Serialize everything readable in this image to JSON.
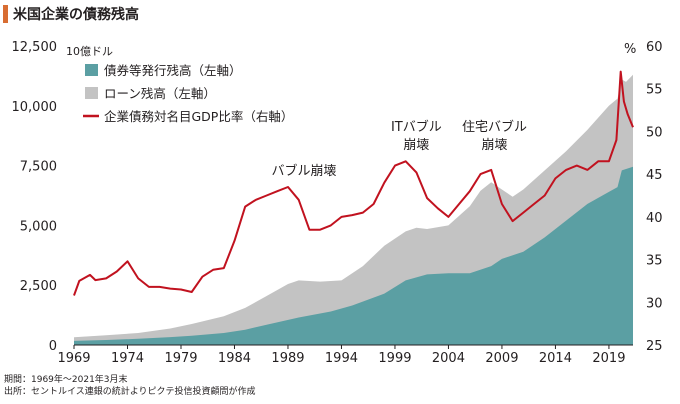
{
  "title": "米国企業の債務残高",
  "notes": {
    "period": "期間：1969年～2021年3月末",
    "source": "出所：セントルイス連銀の統計よりピクテ投信投資顧問が作成"
  },
  "colors": {
    "bonds": "#5b9fa3",
    "loans": "#c3c3c3",
    "ratio": "#c1121f",
    "title_accent": "#d86d32"
  },
  "chart_data": {
    "type": "area",
    "left_axis": {
      "unit_label": "10億ドル",
      "min": 0,
      "max": 12500,
      "ticks": [
        0,
        2500,
        5000,
        7500,
        10000,
        12500
      ],
      "tick_labels": [
        "0",
        "2,500",
        "5,000",
        "7,500",
        "10,000",
        "12,500"
      ]
    },
    "right_axis": {
      "unit_label": "%",
      "min": 25,
      "max": 60,
      "ticks": [
        25,
        30,
        35,
        40,
        45,
        50,
        55,
        60
      ],
      "tick_labels": [
        "25",
        "30",
        "35",
        "40",
        "45",
        "50",
        "55",
        "60"
      ]
    },
    "x_axis": {
      "min": 1969,
      "max": 2021.25,
      "ticks": [
        1969,
        1974,
        1979,
        1984,
        1989,
        1994,
        1999,
        2004,
        2009,
        2014,
        2019
      ],
      "tick_labels": [
        "1969",
        "1974",
        "1979",
        "1984",
        "1989",
        "1994",
        "1999",
        "2004",
        "2009",
        "2014",
        "2019"
      ]
    },
    "legend": [
      {
        "label": "債券等発行残高（左軸）",
        "kind": "area",
        "color": "#5b9fa3"
      },
      {
        "label": "ローン残高（左軸）",
        "kind": "area",
        "color": "#c3c3c3"
      },
      {
        "label": "企業債務対名目GDP比率（右軸）",
        "kind": "line",
        "color": "#c1121f"
      }
    ],
    "annotations": [
      {
        "lines": [
          "バブル崩壊"
        ],
        "x": 1990.5,
        "y": 45.5
      },
      {
        "lines": [
          "ITバブル",
          "崩壊"
        ],
        "x": 2001,
        "y": 48.5
      },
      {
        "lines": [
          "住宅バブル",
          "崩壊"
        ],
        "x": 2008.3,
        "y": 48.5
      }
    ],
    "series": [
      {
        "name": "債券等発行残高（左軸）",
        "axis": "left",
        "style": "stacked-area-bottom",
        "x": [
          1969,
          1972,
          1975,
          1978,
          1980,
          1983,
          1985,
          1987,
          1990,
          1993,
          1995,
          1998,
          2000,
          2002,
          2004,
          2006,
          2008,
          2009,
          2011,
          2013,
          2015,
          2017,
          2019,
          2019.8,
          2020.2,
          2021.25
        ],
        "y": [
          170,
          210,
          260,
          330,
          390,
          500,
          640,
          850,
          1150,
          1400,
          1650,
          2150,
          2700,
          2950,
          3000,
          3000,
          3300,
          3600,
          3900,
          4500,
          5200,
          5900,
          6400,
          6600,
          7300,
          7450
        ]
      },
      {
        "name": "ローン残高（左軸）",
        "axis": "left",
        "style": "stacked-area-top",
        "x": [
          1969,
          1972,
          1975,
          1978,
          1980,
          1983,
          1985,
          1987,
          1989,
          1990,
          1992,
          1994,
          1996,
          1998,
          2000,
          2001,
          2002,
          2004,
          2006,
          2007,
          2008,
          2009,
          2010,
          2011,
          2013,
          2015,
          2017,
          2019,
          2019.8,
          2020.2,
          2020.6,
          2021.25
        ],
        "y": [
          320,
          410,
          500,
          690,
          880,
          1200,
          1550,
          2050,
          2550,
          2700,
          2650,
          2700,
          3300,
          4150,
          4750,
          4900,
          4850,
          5000,
          5800,
          6450,
          6800,
          6500,
          6200,
          6500,
          7300,
          8100,
          9000,
          10000,
          10300,
          11100,
          11000,
          11300
        ]
      },
      {
        "name": "企業債務対名目GDP比率（右軸）",
        "axis": "right",
        "style": "line",
        "x": [
          1969,
          1969.5,
          1970.5,
          1971,
          1972,
          1973,
          1974,
          1975,
          1976,
          1977,
          1978,
          1979,
          1980,
          1981,
          1982,
          1983,
          1984,
          1985,
          1986,
          1987,
          1988,
          1989,
          1990,
          1991,
          1992,
          1993,
          1994,
          1995,
          1996,
          1997,
          1998,
          1999,
          2000,
          2001,
          2002,
          2003,
          2004,
          2005,
          2006,
          2007,
          2008,
          2009,
          2010,
          2011,
          2012,
          2013,
          2014,
          2015,
          2016,
          2017,
          2018,
          2019,
          2019.7,
          2020.1,
          2020.4,
          2020.75,
          2021.25
        ],
        "y": [
          30.8,
          32.5,
          33.2,
          32.6,
          32.8,
          33.6,
          34.8,
          32.8,
          31.8,
          31.8,
          31.6,
          31.5,
          31.2,
          33.0,
          33.8,
          34.0,
          37.2,
          41.2,
          42.0,
          42.5,
          43.0,
          43.5,
          42.0,
          38.5,
          38.5,
          39.0,
          40.0,
          40.2,
          40.5,
          41.5,
          44.0,
          46.0,
          46.5,
          45.2,
          42.2,
          41.0,
          40.0,
          41.5,
          43.0,
          45.0,
          45.5,
          41.5,
          39.5,
          40.5,
          41.5,
          42.5,
          44.5,
          45.5,
          46.0,
          45.5,
          46.5,
          46.5,
          49.0,
          57.0,
          53.5,
          52.0,
          50.5
        ]
      }
    ]
  }
}
